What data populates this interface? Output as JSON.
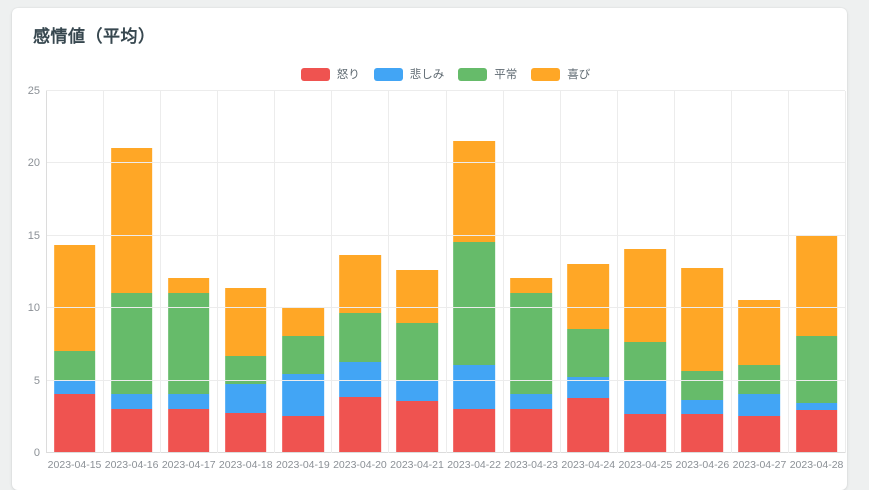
{
  "page": {
    "title": "感情値（平均）"
  },
  "chart_data": {
    "type": "bar",
    "stacked": true,
    "title": "感情値（平均）",
    "xlabel": "",
    "ylabel": "",
    "ylim": [
      0,
      25
    ],
    "yticks": [
      0,
      5,
      10,
      15,
      20,
      25
    ],
    "grid": true,
    "legend_position": "top-center",
    "categories": [
      "2023-04-15",
      "2023-04-16",
      "2023-04-17",
      "2023-04-18",
      "2023-04-19",
      "2023-04-20",
      "2023-04-21",
      "2023-04-22",
      "2023-04-23",
      "2023-04-24",
      "2023-04-25",
      "2023-04-26",
      "2023-04-27",
      "2023-04-28"
    ],
    "series": [
      {
        "name": "怒り",
        "key": "anger",
        "color": "#ef5350",
        "values": [
          4.0,
          3.0,
          3.0,
          2.7,
          2.5,
          3.8,
          3.5,
          3.0,
          3.0,
          3.7,
          2.6,
          2.6,
          2.5,
          2.9
        ]
      },
      {
        "name": "悲しみ",
        "key": "sadness",
        "color": "#42a5f5",
        "values": [
          1.0,
          1.0,
          1.0,
          2.0,
          2.9,
          2.4,
          1.4,
          3.0,
          1.0,
          1.5,
          2.4,
          1.0,
          1.5,
          0.5
        ]
      },
      {
        "name": "平常",
        "key": "normal",
        "color": "#66bb6a",
        "values": [
          2.0,
          7.0,
          7.0,
          1.9,
          2.6,
          3.4,
          4.0,
          8.5,
          7.0,
          3.3,
          2.6,
          2.0,
          2.0,
          4.6
        ]
      },
      {
        "name": "喜び",
        "key": "joy",
        "color": "#ffa726",
        "values": [
          7.3,
          10.0,
          1.0,
          4.7,
          2.0,
          4.0,
          3.7,
          7.0,
          1.0,
          4.5,
          6.4,
          7.1,
          4.5,
          7.0
        ]
      }
    ],
    "totals": [
      14.3,
      21.0,
      12.0,
      11.3,
      10.0,
      13.6,
      12.6,
      21.5,
      12.0,
      13.0,
      14.0,
      12.7,
      10.5,
      15.0
    ]
  },
  "colors": {
    "background": "#eef0f0",
    "card": "#ffffff",
    "title_text": "#37474f",
    "axis_text": "#8b9096",
    "gridline": "#ececec",
    "axis_line": "#dcdcdc"
  }
}
